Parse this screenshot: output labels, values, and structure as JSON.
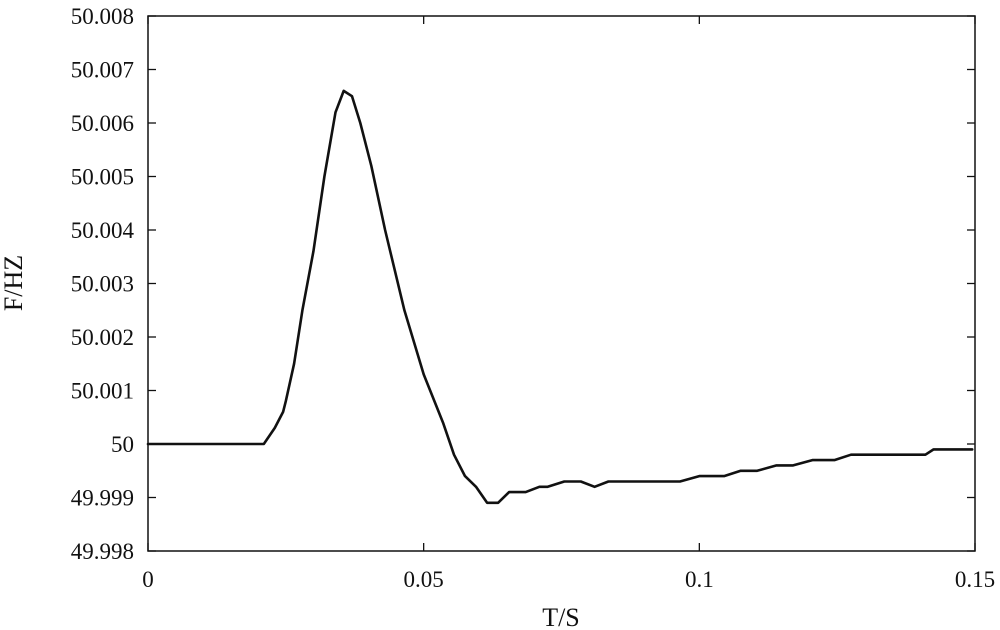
{
  "chart_data": {
    "type": "line",
    "title": "",
    "xlabel": "T/S",
    "ylabel": "F/HZ",
    "xlim": [
      0,
      0.15
    ],
    "ylim": [
      49.998,
      50.008
    ],
    "x_ticks": [
      0,
      0.05,
      0.1,
      0.15
    ],
    "x_tick_labels": [
      "0",
      "0.05",
      "0.1",
      "0.15"
    ],
    "y_ticks": [
      49.998,
      49.999,
      50,
      50.001,
      50.002,
      50.003,
      50.004,
      50.005,
      50.006,
      50.007,
      50.008
    ],
    "y_tick_labels": [
      "49.998",
      "49.999",
      "50",
      "50.001",
      "50.002",
      "50.003",
      "50.004",
      "50.005",
      "50.006",
      "50.007",
      "50.008"
    ],
    "grid": false,
    "series": [
      {
        "color": "#111111",
        "x": [
          0,
          0.021,
          0.023,
          0.0245,
          0.025,
          0.0265,
          0.028,
          0.03,
          0.032,
          0.034,
          0.0355,
          0.037,
          0.0385,
          0.0405,
          0.043,
          0.0465,
          0.05,
          0.0535,
          0.0555,
          0.0575,
          0.0595,
          0.0615,
          0.0635,
          0.0655,
          0.0685,
          0.071,
          0.0725,
          0.0755,
          0.0785,
          0.081,
          0.0835,
          0.0865,
          0.0965,
          0.1,
          0.1045,
          0.1075,
          0.1105,
          0.114,
          0.117,
          0.1205,
          0.1245,
          0.1275,
          0.1315,
          0.141,
          0.1425,
          0.1495
        ],
        "y": [
          50,
          50,
          50.0003,
          50.0006,
          50.0008,
          50.0015,
          50.0025,
          50.0036,
          50.005,
          50.0062,
          50.0066,
          50.0065,
          50.006,
          50.0052,
          50.004,
          50.0025,
          50.0013,
          50.0004,
          49.9998,
          49.9994,
          49.9992,
          49.9989,
          49.9989,
          49.9991,
          49.9991,
          49.9992,
          49.9992,
          49.9993,
          49.9993,
          49.9992,
          49.9993,
          49.9993,
          49.9993,
          49.9994,
          49.9994,
          49.9995,
          49.9995,
          49.9996,
          49.9996,
          49.9997,
          49.9997,
          49.9998,
          49.9998,
          49.9998,
          49.9999,
          49.9999
        ]
      }
    ]
  }
}
